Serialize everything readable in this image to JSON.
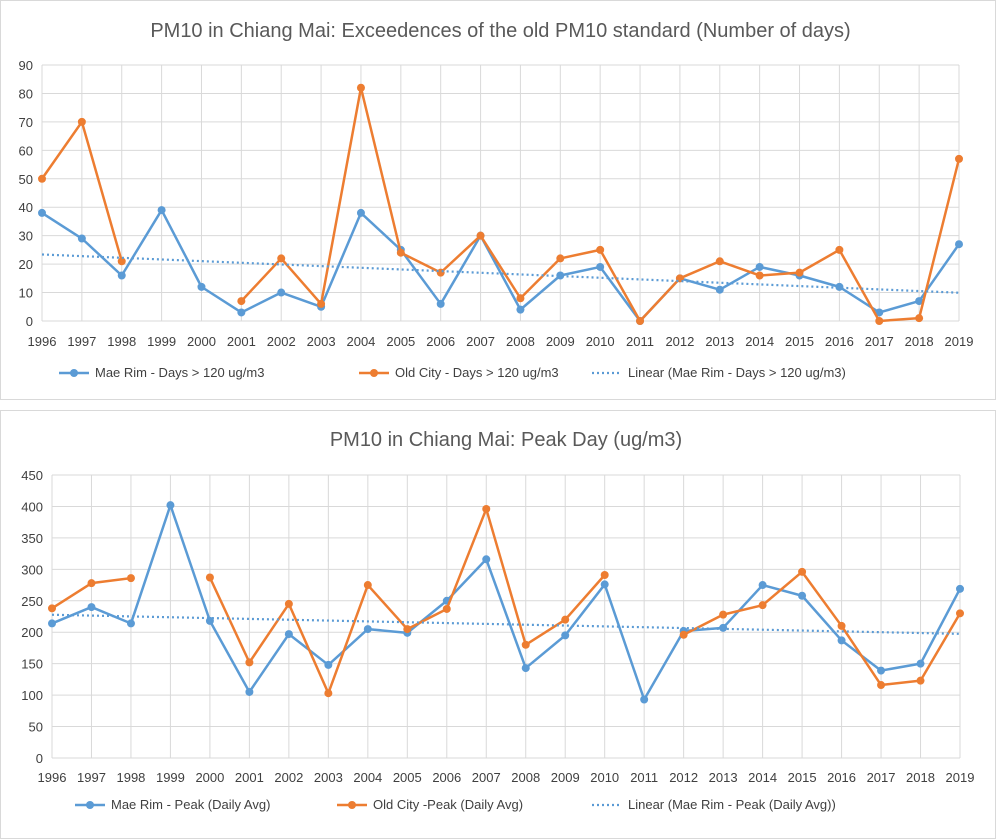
{
  "chart_data": [
    {
      "type": "line",
      "title": "PM10 in Chiang Mai: Exceedences of the old PM10 standard (Number of days)",
      "xlabel": "",
      "ylabel": "",
      "ylim": [
        0,
        90
      ],
      "yticks": [
        "0",
        "10",
        "20",
        "30",
        "40",
        "50",
        "60",
        "70",
        "80",
        "90"
      ],
      "categories": [
        "1996",
        "1997",
        "1998",
        "1999",
        "2000",
        "2001",
        "2002",
        "2003",
        "2004",
        "2005",
        "2006",
        "2007",
        "2008",
        "2009",
        "2010",
        "2011",
        "2012",
        "2013",
        "2014",
        "2015",
        "2016",
        "2017",
        "2018",
        "2019"
      ],
      "grid": true,
      "legend_position": "bottom",
      "series": [
        {
          "name": "Mae Rim - Days > 120 ug/m3",
          "color": "#5b9bd5",
          "values": [
            38,
            29,
            16,
            39,
            12,
            3,
            10,
            5,
            38,
            25,
            6,
            30,
            4,
            16,
            19,
            0,
            15,
            11,
            19,
            16,
            12,
            3,
            7,
            27
          ]
        },
        {
          "name": "Old City - Days > 120 ug/m3",
          "color": "#ed7d31",
          "values": [
            50,
            70,
            21,
            null,
            null,
            7,
            22,
            6,
            82,
            24,
            17,
            30,
            8,
            22,
            25,
            0,
            15,
            21,
            16,
            17,
            25,
            0,
            1,
            57
          ]
        },
        {
          "name": "Linear (Mae Rim - Days > 120 ug/m3)",
          "color": "#5b9bd5",
          "style": "dotted",
          "trendline_of": 0
        }
      ]
    },
    {
      "type": "line",
      "title": "PM10 in Chiang Mai: Peak Day (ug/m3)",
      "xlabel": "",
      "ylabel": "",
      "ylim": [
        0,
        450
      ],
      "yticks": [
        "0",
        "50",
        "100",
        "150",
        "200",
        "250",
        "300",
        "350",
        "400",
        "450"
      ],
      "categories": [
        "1996",
        "1997",
        "1998",
        "1999",
        "2000",
        "2001",
        "2002",
        "2003",
        "2004",
        "2005",
        "2006",
        "2007",
        "2008",
        "2009",
        "2010",
        "2011",
        "2012",
        "2013",
        "2014",
        "2015",
        "2016",
        "2017",
        "2018",
        "2019"
      ],
      "grid": true,
      "legend_position": "bottom",
      "series": [
        {
          "name": "Mae Rim - Peak (Daily Avg)",
          "color": "#5b9bd5",
          "values": [
            214,
            240,
            214,
            402,
            218,
            105,
            197,
            148,
            205,
            199,
            250,
            316,
            143,
            195,
            276,
            93,
            202,
            207,
            275,
            258,
            187,
            139,
            150,
            269
          ]
        },
        {
          "name": "Old City -Peak (Daily Avg)",
          "color": "#ed7d31",
          "values": [
            238,
            278,
            286,
            null,
            287,
            152,
            245,
            103,
            275,
            205,
            237,
            396,
            180,
            220,
            291,
            null,
            196,
            228,
            243,
            296,
            210,
            116,
            123,
            230
          ]
        },
        {
          "name": "Linear (Mae Rim - Peak (Daily Avg))",
          "color": "#5b9bd5",
          "style": "dotted",
          "trendline_of": 0
        }
      ]
    }
  ]
}
